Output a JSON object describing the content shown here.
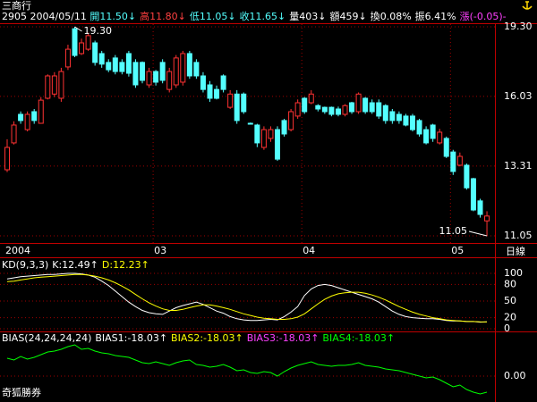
{
  "header": {
    "name": "三商行",
    "code": "2905",
    "date": "2004/05/11",
    "fields": [
      {
        "text": "開11.50↓",
        "color": "#54ffff"
      },
      {
        "text": "高11.80↓",
        "color": "#ff4040"
      },
      {
        "text": "低11.05↓",
        "color": "#54ffff"
      },
      {
        "text": "收11.65↓",
        "color": "#54ffff"
      },
      {
        "text": "量403↓",
        "color": "#ffffff"
      },
      {
        "text": "額459↓",
        "color": "#ffffff"
      },
      {
        "text": "換0.08%",
        "color": "#ffffff"
      },
      {
        "text": "振6.41%",
        "color": "#ffffff"
      },
      {
        "text": "漲(-0.05)-",
        "color": "#ff40ff"
      }
    ]
  },
  "footer": "奇狐勝券",
  "chart_data": [
    {
      "type": "candlestick",
      "log_scale": true,
      "period": "日線",
      "up_color": "#ff3232",
      "down_color": "#54ffff",
      "open": [
        13.18,
        14.16,
        15.28,
        14.67,
        15.39,
        14.92,
        15.95,
        16.13,
        15.95,
        17.34,
        19.2,
        17.97,
        18.18,
        18.49,
        17.97,
        17.55,
        17.76,
        17.55,
        17.97,
        17.55,
        17.55,
        16.53,
        17.13,
        17.55,
        16.33,
        16.53,
        16.65,
        17.97,
        17.55,
        16.93,
        16.53,
        16.33,
        16.93,
        15.57,
        16.13,
        16.13,
        14.92,
        14.85,
        13.99,
        14.33,
        14.67,
        15.03,
        14.67,
        15.21,
        15.95,
        15.76,
        15.64,
        15.57,
        15.57,
        15.5,
        15.28,
        15.76,
        15.39,
        15.95,
        15.76,
        15.76,
        15.64,
        15.39,
        15.28,
        15.21,
        15.21,
        15.03,
        14.67,
        14.85,
        14.16,
        14.33,
        13.82,
        13.34,
        13.34,
        12.87,
        12.13,
        11.5
      ],
      "high": [
        14.3,
        15.0,
        15.4,
        15.4,
        15.5,
        16.0,
        17.0,
        17.1,
        17.3,
        18.4,
        19.3,
        18.7,
        19.0,
        18.6,
        18.1,
        17.7,
        17.9,
        17.7,
        18.1,
        17.7,
        17.6,
        17.3,
        17.2,
        17.7,
        17.3,
        17.9,
        18.1,
        18.1,
        17.7,
        17.1,
        16.7,
        16.5,
        17.0,
        16.3,
        16.3,
        16.2,
        14.95,
        14.9,
        14.8,
        14.8,
        14.8,
        15.1,
        15.5,
        15.9,
        16.0,
        16.3,
        15.7,
        15.6,
        15.6,
        15.6,
        15.7,
        15.8,
        16.2,
        16.0,
        15.9,
        15.9,
        15.7,
        15.5,
        15.4,
        15.3,
        15.3,
        15.1,
        14.8,
        14.9,
        14.7,
        14.4,
        13.9,
        13.8,
        13.4,
        12.9,
        12.2,
        11.8
      ],
      "low": [
        13.1,
        14.1,
        14.9,
        14.6,
        14.9,
        14.9,
        15.9,
        16.0,
        15.8,
        17.2,
        17.8,
        17.9,
        18.1,
        17.4,
        17.3,
        17.1,
        17.0,
        17.0,
        16.9,
        16.4,
        16.6,
        16.4,
        16.5,
        16.6,
        16.2,
        16.4,
        16.5,
        16.8,
        16.8,
        16.2,
        15.8,
        15.9,
        16.2,
        15.5,
        14.9,
        15.3,
        14.9,
        14.0,
        13.9,
        14.2,
        13.5,
        14.4,
        14.6,
        15.1,
        15.3,
        15.7,
        15.4,
        15.3,
        15.2,
        15.2,
        15.2,
        15.3,
        15.3,
        15.3,
        15.3,
        15.1,
        14.9,
        14.9,
        14.9,
        14.8,
        14.6,
        14.4,
        14.1,
        14.2,
        14.1,
        13.6,
        13.0,
        13.3,
        12.5,
        11.8,
        11.6,
        11.05
      ],
      "close": [
        13.99,
        14.85,
        15.03,
        15.28,
        15.03,
        15.87,
        16.93,
        16.93,
        17.13,
        18.18,
        17.88,
        18.49,
        18.85,
        17.55,
        17.47,
        17.21,
        17.13,
        17.13,
        17.05,
        16.53,
        16.73,
        17.13,
        16.65,
        16.73,
        17.13,
        17.76,
        17.97,
        16.93,
        16.93,
        16.33,
        15.95,
        15.95,
        16.33,
        16.13,
        15.03,
        15.39,
        14.92,
        14.16,
        14.67,
        14.67,
        13.56,
        14.5,
        15.39,
        15.76,
        15.39,
        16.13,
        15.5,
        15.39,
        15.28,
        15.28,
        15.64,
        15.39,
        16.13,
        15.39,
        15.39,
        15.21,
        15.03,
        15.03,
        15.03,
        14.85,
        14.67,
        14.5,
        14.16,
        14.33,
        14.57,
        13.66,
        13.12,
        13.66,
        12.56,
        11.84,
        11.7,
        11.65
      ],
      "ylim": [
        11.05,
        19.3
      ],
      "yticks": [
        {
          "value": 19.3,
          "label": "19.30"
        },
        16.03,
        13.31,
        11.05
      ],
      "xticks": [
        {
          "value": 0,
          "label": "2004"
        },
        {
          "value": 22,
          "label": "03"
        },
        {
          "value": 44,
          "label": "04"
        },
        {
          "value": 66,
          "label": "05"
        }
      ],
      "annotations": [
        {
          "label": "19.30",
          "value": 19.3
        },
        {
          "label": "11.05",
          "value": 11.05
        }
      ],
      "grid": true
    },
    {
      "type": "line",
      "title": "KD(9,3,3)",
      "series": [
        {
          "name": "K:12.49↑",
          "color": "#ffffff",
          "values": [
            90,
            92,
            94,
            95,
            96,
            97,
            98,
            98,
            99,
            100,
            100,
            99,
            97,
            93,
            86,
            78,
            68,
            58,
            48,
            40,
            33,
            29,
            27,
            26,
            32,
            38,
            42,
            45,
            48,
            44,
            38,
            32,
            28,
            22,
            18,
            16,
            15,
            15,
            16,
            17,
            16,
            22,
            30,
            40,
            60,
            72,
            78,
            80,
            78,
            74,
            70,
            66,
            62,
            58,
            54,
            48,
            40,
            32,
            26,
            22,
            20,
            19,
            18,
            18,
            17,
            15,
            14,
            14,
            13,
            13,
            12,
            12.49
          ]
        },
        {
          "name": "D:12.23↑",
          "color": "#ffff00",
          "values": [
            85,
            86,
            88,
            90,
            92,
            93,
            94,
            95,
            96,
            97,
            98,
            98,
            97,
            95,
            92,
            88,
            83,
            77,
            70,
            62,
            54,
            47,
            41,
            36,
            33,
            33,
            35,
            38,
            41,
            43,
            43,
            41,
            38,
            35,
            31,
            27,
            24,
            21,
            19,
            18,
            17,
            17,
            18,
            21,
            27,
            36,
            45,
            53,
            59,
            63,
            65,
            66,
            66,
            64,
            61,
            57,
            52,
            46,
            40,
            35,
            30,
            26,
            23,
            20,
            18,
            16,
            15,
            14,
            13,
            13,
            12.5,
            12.23
          ]
        }
      ],
      "ylim": [
        0,
        100
      ],
      "yticks": [
        100,
        80,
        50,
        20,
        0
      ],
      "grid": true
    },
    {
      "type": "line",
      "title": "BIAS(24,24,24,24)",
      "legend": [
        {
          "label": "BIAS1:-18.03↑",
          "color": "#ffffff"
        },
        {
          "label": "BIAS2:-18.03↑",
          "color": "#ffff00"
        },
        {
          "label": "BIAS3:-18.03↑",
          "color": "#ff40ff"
        },
        {
          "label": "BIAS4:-18.03↑",
          "color": "#00ff00"
        }
      ],
      "series": [
        {
          "color": "#00ff00",
          "values": [
            20,
            18,
            22,
            19,
            21,
            24,
            27,
            28,
            30,
            33,
            35,
            30,
            31,
            28,
            26,
            25,
            23,
            22,
            21,
            18,
            15,
            14,
            16,
            14,
            12,
            15,
            17,
            18,
            13,
            12,
            10,
            11,
            13,
            10,
            6,
            7,
            4,
            3,
            5,
            4,
            0,
            5,
            9,
            12,
            14,
            16,
            13,
            12,
            11,
            12,
            12,
            13,
            15,
            12,
            11,
            10,
            8,
            7,
            6,
            4,
            2,
            0,
            -2,
            -1,
            -4,
            -8,
            -12,
            -10,
            -15,
            -18,
            -20,
            -18.03
          ]
        }
      ],
      "ylim": [
        -25,
        45
      ],
      "yticks": [
        {
          "value": 0,
          "label": "0.00"
        }
      ],
      "grid": true
    }
  ]
}
